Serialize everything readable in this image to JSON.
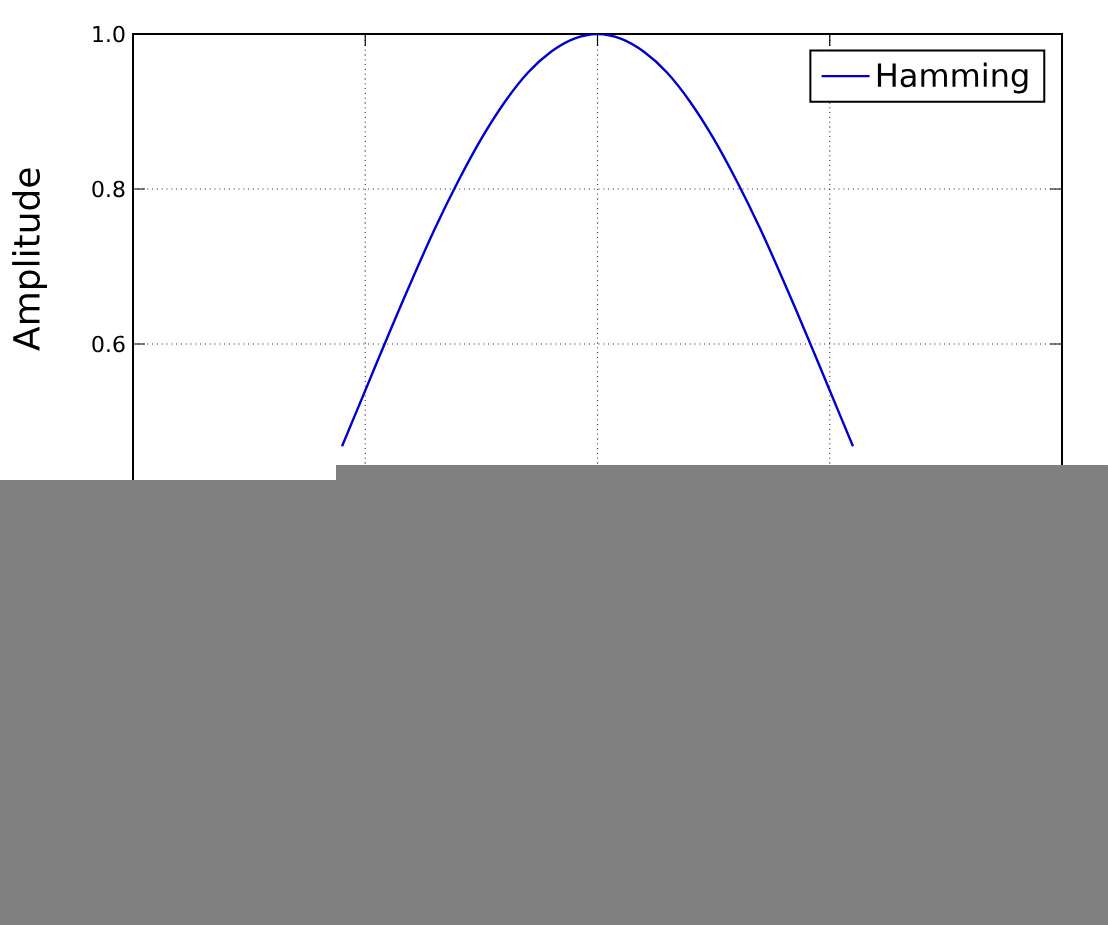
{
  "chart_data": {
    "type": "line",
    "ylabel": "Amplitude",
    "categories": [
      null,
      null,
      null,
      null,
      null,
      null,
      null,
      null,
      null,
      null,
      null,
      null,
      null,
      null,
      null,
      null,
      null,
      null,
      null,
      null,
      null,
      null,
      null,
      null,
      null,
      null,
      null,
      null,
      null,
      null,
      null,
      null,
      null,
      null,
      null,
      null,
      null,
      null,
      null,
      null,
      null
    ],
    "series": [
      {
        "name": "Hamming",
        "color": "#0000cc",
        "values": [
          null,
          null,
          null,
          null,
          null,
          null,
          null,
          null,
          null,
          0.468,
          0.54,
          0.612,
          0.682,
          0.749,
          0.81,
          0.865,
          0.912,
          0.95,
          0.977,
          0.994,
          1.0,
          0.994,
          0.977,
          0.95,
          0.912,
          0.865,
          0.81,
          0.749,
          0.682,
          0.612,
          0.54,
          0.468,
          null,
          null,
          null,
          null,
          null,
          null,
          null,
          null,
          null
        ]
      }
    ],
    "ylim": [
      0,
      1.0
    ],
    "yticks": [
      0.6,
      0.8,
      {
        "value": 1.0,
        "label": "1.0"
      }
    ],
    "grid": true,
    "legend": "top right",
    "tick_labels": "y",
    "line_style": "solid",
    "marker": "none"
  }
}
